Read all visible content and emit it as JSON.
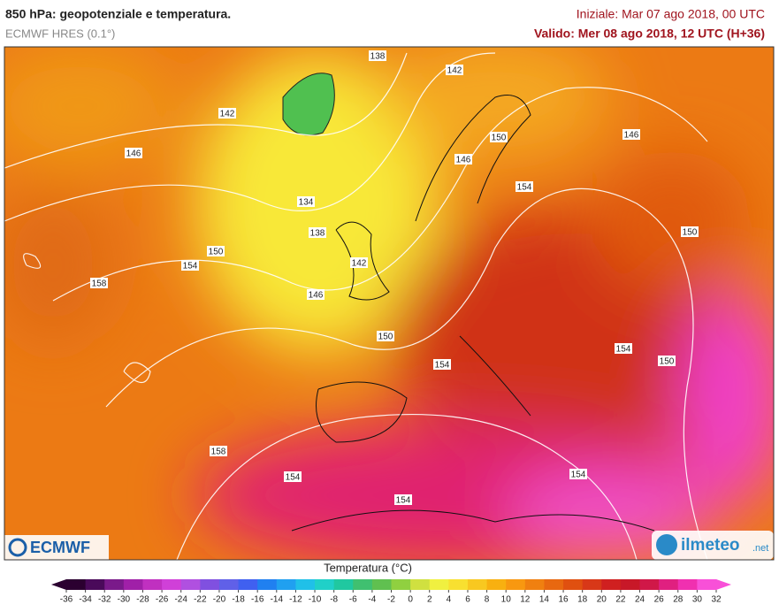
{
  "header": {
    "title": "850 hPa: geopotenziale e temperatura.",
    "model": "ECMWF HRES (0.1°)",
    "init": "Iniziale: Mar 07 ago 2018, 00 UTC",
    "valid": "Valido: Mer 08 ago 2018, 12 UTC (H+36)"
  },
  "contour_labels": [
    138,
    142,
    142,
    146,
    150,
    146,
    146,
    154,
    134,
    138,
    150,
    150,
    142,
    154,
    158,
    146,
    150,
    154,
    154,
    150,
    158,
    154,
    154,
    154
  ],
  "colorbar": {
    "title": "Temperatura (°C)",
    "ticks": [
      -36,
      -34,
      -32,
      -30,
      -28,
      -26,
      -24,
      -22,
      -20,
      -18,
      -16,
      -14,
      -12,
      -10,
      -8,
      -6,
      -4,
      -2,
      0,
      2,
      4,
      6,
      8,
      10,
      12,
      14,
      16,
      18,
      20,
      22,
      24,
      26,
      28,
      30,
      32
    ],
    "colors": [
      "#2b0030",
      "#4a0a5a",
      "#7a1a8a",
      "#a020a8",
      "#c030c0",
      "#d040d8",
      "#b050e0",
      "#8050e0",
      "#6060e8",
      "#4060f0",
      "#2080f0",
      "#20a0f0",
      "#20c0e8",
      "#20d0c8",
      "#20c8a0",
      "#40c070",
      "#60c050",
      "#90d040",
      "#d0e040",
      "#f0f040",
      "#f8e030",
      "#f8c820",
      "#f8b010",
      "#f89810",
      "#f08010",
      "#e86810",
      "#e05010",
      "#d83818",
      "#d02020",
      "#c81828",
      "#d01848",
      "#e02080",
      "#f030b0",
      "#f850d8"
    ]
  },
  "logos": {
    "left": "ECMWF",
    "right": "ilmeteo",
    "right_suffix": ".net"
  }
}
